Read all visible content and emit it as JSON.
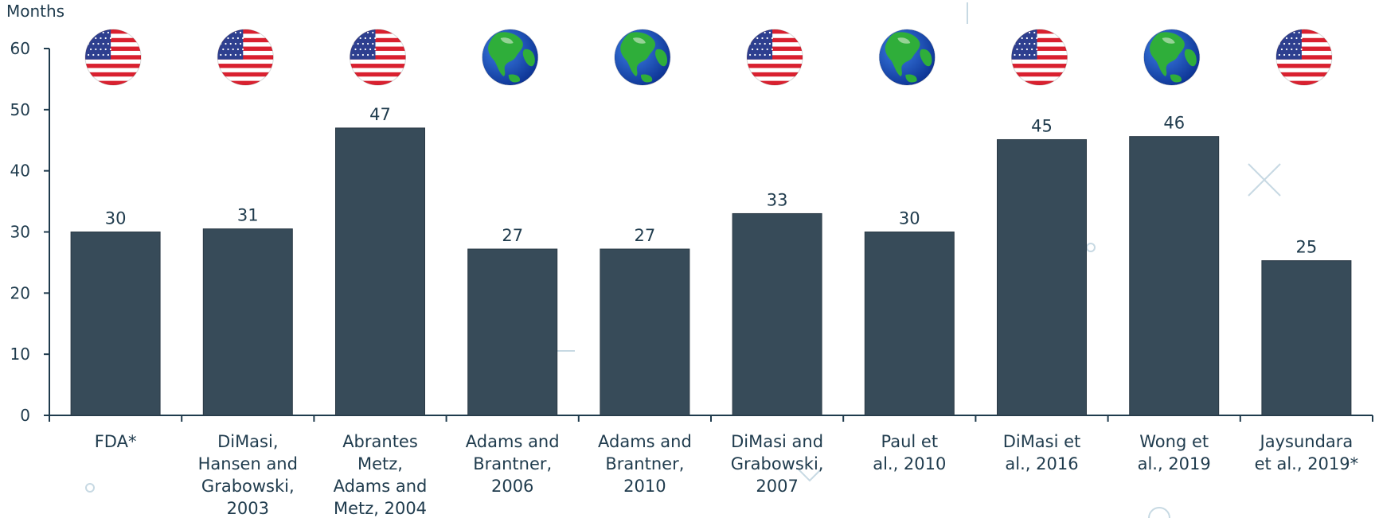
{
  "chart_data": {
    "type": "bar",
    "ylabel": "Months",
    "ylim": [
      0,
      60
    ],
    "yticks": [
      0,
      10,
      20,
      30,
      40,
      50,
      60
    ],
    "grid": false,
    "categories": [
      [
        "FDA*"
      ],
      [
        "DiMasi,",
        "Hansen and",
        "Grabowski,",
        "2003"
      ],
      [
        "Abrantes",
        "Metz,",
        "Adams and",
        "Metz, 2004"
      ],
      [
        "Adams and",
        "Brantner,",
        "2006"
      ],
      [
        "Adams and",
        "Brantner,",
        "2010"
      ],
      [
        "DiMasi and",
        "Grabowski,",
        "2007"
      ],
      [
        "Paul et",
        "al., 2010"
      ],
      [
        "DiMasi et",
        "al., 2016"
      ],
      [
        "Wong et",
        "al., 2019"
      ],
      [
        "Jaysundara",
        "et al., 2019*"
      ]
    ],
    "values": [
      30,
      30.5,
      47,
      27.2,
      27.2,
      33,
      30,
      45.1,
      45.6,
      25.3
    ],
    "data_labels": [
      "30",
      "31",
      "47",
      "27",
      "27",
      "33",
      "30",
      "45",
      "46",
      "25"
    ],
    "region_icons": [
      "us-flag-icon",
      "us-flag-icon",
      "us-flag-icon",
      "globe-icon",
      "globe-icon",
      "us-flag-icon",
      "globe-icon",
      "us-flag-icon",
      "globe-icon",
      "us-flag-icon"
    ],
    "bar_color": "#374b59",
    "text_color": "#1f3b4d"
  }
}
